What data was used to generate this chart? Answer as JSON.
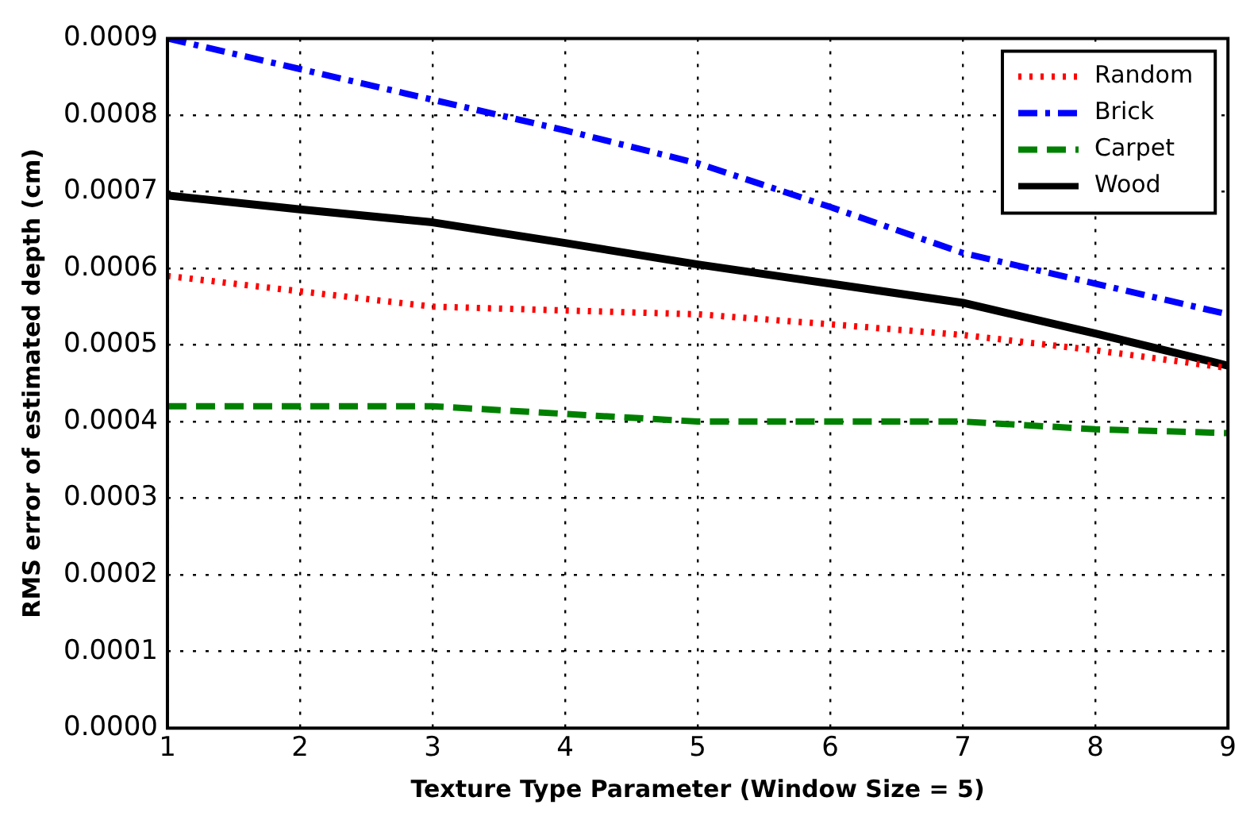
{
  "chart_data": {
    "type": "line",
    "xlabel": "Texture Type Parameter (Window Size = 5)",
    "ylabel": "RMS error of estimated depth (cm)",
    "x": [
      1,
      2,
      3,
      4,
      5,
      6,
      7,
      8,
      9
    ],
    "series": [
      {
        "name": "Random",
        "color": "#ff0000",
        "line_style": "dotted",
        "values": [
          0.00059,
          0.00057,
          0.00055,
          0.000545,
          0.00054,
          0.000527,
          0.000513,
          0.000493,
          0.00047
        ]
      },
      {
        "name": "Brick",
        "color": "#0000ff",
        "line_style": "dashdot",
        "values": [
          0.0009,
          0.00086,
          0.00082,
          0.00078,
          0.000737,
          0.00068,
          0.00062,
          0.00058,
          0.00054
        ]
      },
      {
        "name": "Carpet",
        "color": "#008000",
        "line_style": "dashed",
        "values": [
          0.00042,
          0.00042,
          0.00042,
          0.00041,
          0.0004,
          0.0004,
          0.0004,
          0.00039,
          0.000385
        ]
      },
      {
        "name": "Wood",
        "color": "#000000",
        "line_style": "solid",
        "values": [
          0.000695,
          0.000677,
          0.00066,
          0.000633,
          0.000605,
          0.00058,
          0.000555,
          0.000515,
          0.000473
        ]
      }
    ],
    "xlim": [
      1,
      9
    ],
    "xticks": [
      1,
      2,
      3,
      4,
      5,
      6,
      7,
      8,
      9
    ],
    "ylim": [
      0,
      0.0009
    ],
    "yticks": [
      {
        "value": 0,
        "label": "0.0000"
      },
      {
        "value": 0.0001,
        "label": "0.0001"
      },
      {
        "value": 0.0002,
        "label": "0.0002"
      },
      {
        "value": 0.0003,
        "label": "0.0003"
      },
      {
        "value": 0.0004,
        "label": "0.0004"
      },
      {
        "value": 0.0005,
        "label": "0.0005"
      },
      {
        "value": 0.0006,
        "label": "0.0006"
      },
      {
        "value": 0.0007,
        "label": "0.0007"
      },
      {
        "value": 0.0008,
        "label": "0.0008"
      },
      {
        "value": 0.0009,
        "label": "0.0009"
      }
    ],
    "grid": true,
    "legend": "top right",
    "marker": "none"
  }
}
